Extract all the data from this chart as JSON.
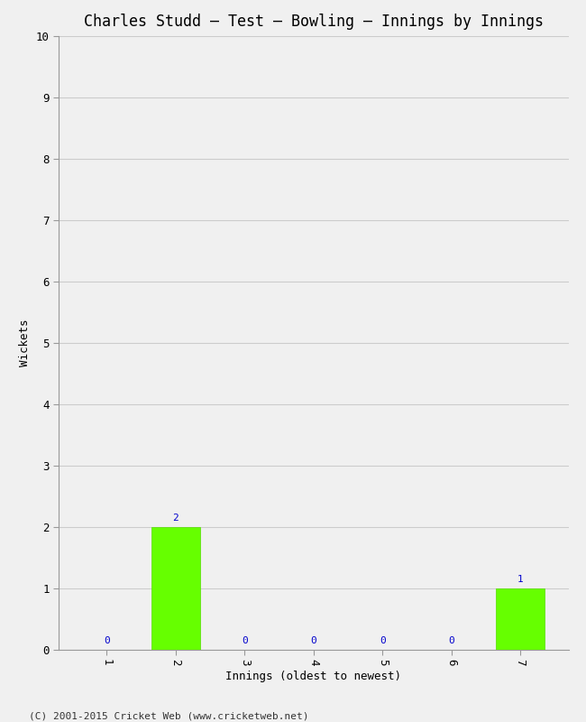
{
  "title": "Charles Studd – Test – Bowling – Innings by Innings",
  "xlabel": "Innings (oldest to newest)",
  "ylabel": "Wickets",
  "categories": [
    "1",
    "2",
    "3",
    "4",
    "5",
    "6",
    "7"
  ],
  "values": [
    0,
    2,
    0,
    0,
    0,
    0,
    1
  ],
  "bar_color": "#66ff00",
  "bar_edge_color": "#55dd00",
  "label_color": "#0000cc",
  "ylim": [
    0,
    10
  ],
  "yticks": [
    0,
    1,
    2,
    3,
    4,
    5,
    6,
    7,
    8,
    9,
    10
  ],
  "background_color": "#f0f0f0",
  "plot_bg_color": "#f0f0f0",
  "grid_color": "#cccccc",
  "title_fontsize": 12,
  "axis_label_fontsize": 9,
  "tick_fontsize": 9,
  "value_label_fontsize": 8,
  "copyright": "(C) 2001-2015 Cricket Web (www.cricketweb.net)",
  "copyright_fontsize": 8
}
